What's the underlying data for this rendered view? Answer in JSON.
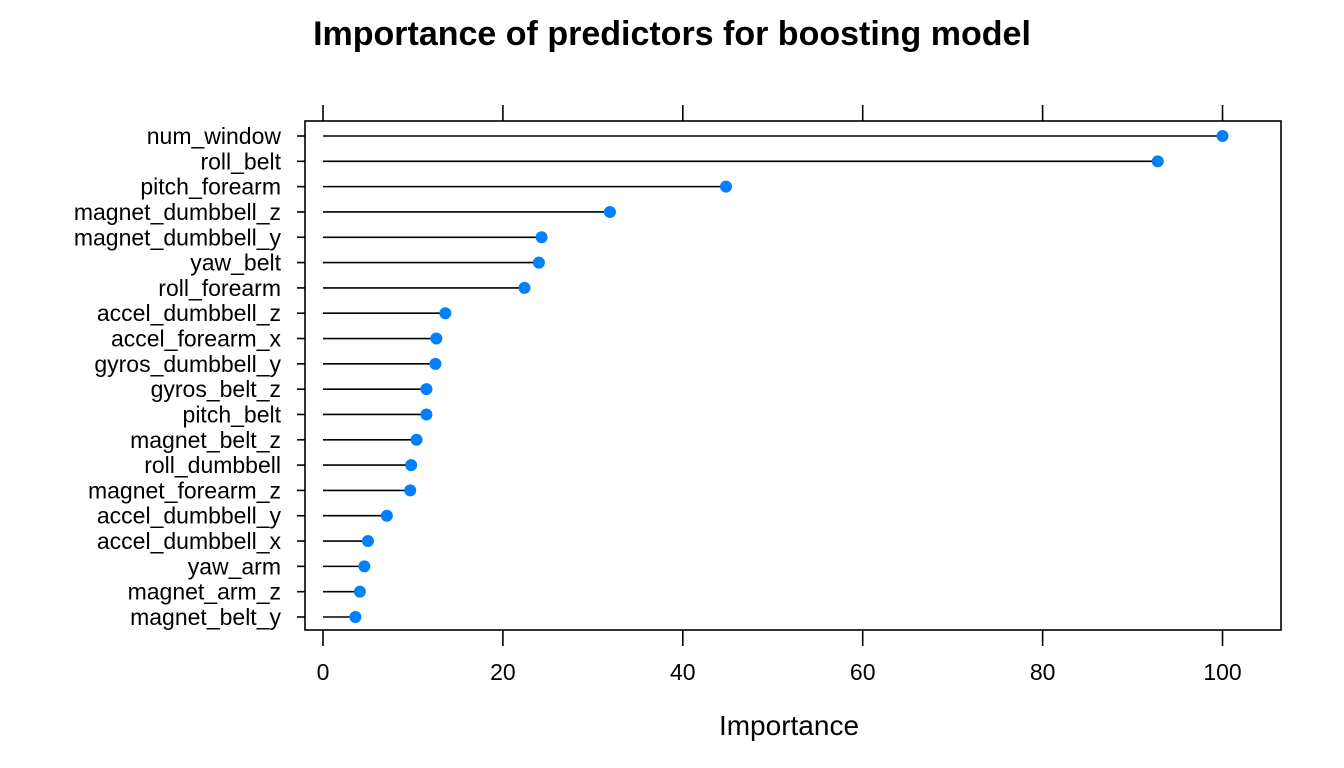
{
  "chart_data": {
    "type": "dotplot",
    "title": "Importance of predictors for boosting model",
    "xlabel": "Importance",
    "ylabel": "",
    "xlim": [
      -2,
      106.5
    ],
    "xticks": [
      0,
      20,
      40,
      60,
      80,
      100
    ],
    "xtick_labels": [
      "0",
      "20",
      "40",
      "60",
      "80",
      "100"
    ],
    "grid": false,
    "legend": "none",
    "point_color": "#0080ff",
    "line_color": "#000000",
    "categories": [
      "num_window",
      "roll_belt",
      "pitch_forearm",
      "magnet_dumbbell_z",
      "magnet_dumbbell_y",
      "yaw_belt",
      "roll_forearm",
      "accel_dumbbell_z",
      "accel_forearm_x",
      "gyros_dumbbell_y",
      "gyros_belt_z",
      "pitch_belt",
      "magnet_belt_z",
      "roll_dumbbell",
      "magnet_forearm_z",
      "accel_dumbbell_y",
      "accel_dumbbell_x",
      "yaw_arm",
      "magnet_arm_z",
      "magnet_belt_y"
    ],
    "values": [
      100,
      92.8,
      44.8,
      31.9,
      24.3,
      24.0,
      22.4,
      13.6,
      12.6,
      12.5,
      11.5,
      11.5,
      10.4,
      9.8,
      9.7,
      7.1,
      5.0,
      4.6,
      4.1,
      3.6
    ]
  }
}
